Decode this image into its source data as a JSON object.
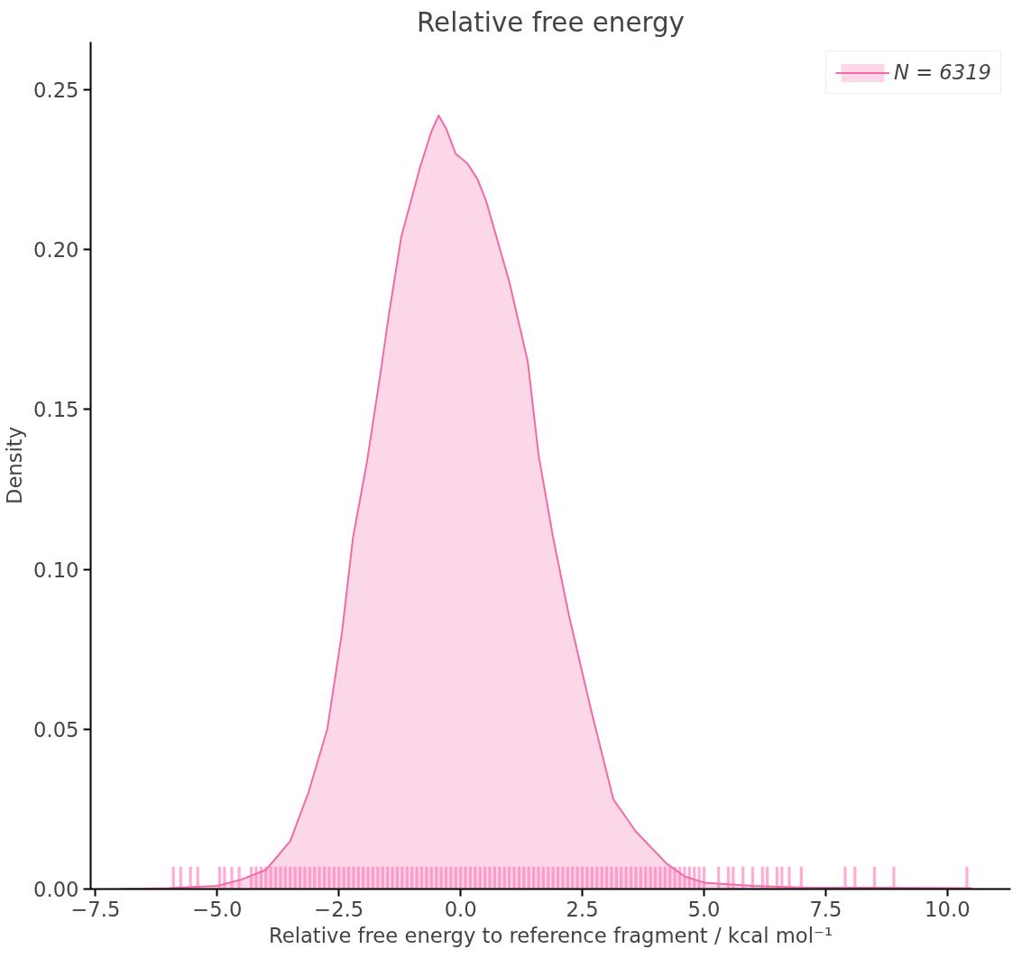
{
  "chart_data": {
    "type": "area",
    "title": "Relative free energy",
    "xlabel": "Relative free energy to reference fragment / kcal mol⁻¹",
    "ylabel": "Density",
    "xlim": [
      -7.6,
      11.3
    ],
    "ylim": [
      0,
      0.265
    ],
    "xticks": [
      {
        "value": -7.5,
        "label": "−7.5"
      },
      {
        "value": -5.0,
        "label": "−5.0"
      },
      {
        "value": -2.5,
        "label": "−2.5"
      },
      {
        "value": 0,
        "label": "0.0"
      },
      {
        "value": 2.5,
        "label": "2.5"
      },
      {
        "value": 5.0,
        "label": "5.0"
      },
      {
        "value": 7.5,
        "label": "7.5"
      },
      {
        "value": 10.0,
        "label": "10.0"
      }
    ],
    "yticks": [
      {
        "value": 0,
        "label": "0.00"
      },
      {
        "value": 0.05,
        "label": "0.05"
      },
      {
        "value": 0.1,
        "label": "0.10"
      },
      {
        "value": 0.15,
        "label": "0.15"
      },
      {
        "value": 0.2,
        "label": "0.20"
      },
      {
        "value": 0.25,
        "label": "0.25"
      }
    ],
    "grid": false,
    "legend": "top right",
    "series": [
      {
        "name": "N = 6319",
        "color": "#f06ba8",
        "x": [
          -7.0,
          -6.0,
          -5.0,
          -4.5,
          -4.0,
          -3.5,
          -3.13,
          -2.74,
          -2.44,
          -2.21,
          -1.92,
          -1.66,
          -1.47,
          -1.22,
          -0.83,
          -0.6,
          -0.45,
          -0.3,
          -0.1,
          0.14,
          0.35,
          0.53,
          1.0,
          1.38,
          1.6,
          1.9,
          2.22,
          2.68,
          3.14,
          3.6,
          4.23,
          4.6,
          5.0,
          6.0,
          7.0,
          8.5,
          10.5
        ],
        "values": [
          0.0,
          0.0003,
          0.001,
          0.003,
          0.006,
          0.015,
          0.03,
          0.05,
          0.08,
          0.11,
          0.134,
          0.16,
          0.18,
          0.204,
          0.226,
          0.237,
          0.242,
          0.238,
          0.23,
          0.227,
          0.222,
          0.215,
          0.19,
          0.165,
          0.136,
          0.11,
          0.086,
          0.056,
          0.028,
          0.018,
          0.008,
          0.004,
          0.002,
          0.001,
          0.0005,
          0.0004,
          0.0003
        ]
      },
      {
        "type": "bar",
        "color": "#ff69b4",
        "x": [
          -5.9,
          -5.75,
          -5.55,
          -5.4,
          -4.95,
          -4.85,
          -4.7,
          -4.55,
          -4.3,
          -4.2,
          -4.1,
          -4.0,
          -3.9,
          -3.8,
          -3.7,
          -3.6,
          -3.5,
          -3.4,
          -3.3,
          -3.2,
          -3.1,
          -3.0,
          -2.9,
          -2.8,
          -2.7,
          -2.6,
          -2.5,
          -2.4,
          -2.3,
          -2.2,
          -2.1,
          -2.0,
          -1.9,
          -1.8,
          -1.7,
          -1.6,
          -1.5,
          -1.4,
          -1.3,
          -1.2,
          -1.1,
          -1.0,
          -0.9,
          -0.8,
          -0.7,
          -0.6,
          -0.5,
          -0.4,
          -0.3,
          -0.2,
          -0.1,
          0.0,
          0.1,
          0.2,
          0.3,
          0.4,
          0.5,
          0.6,
          0.7,
          0.8,
          0.9,
          1.0,
          1.1,
          1.2,
          1.3,
          1.4,
          1.5,
          1.6,
          1.7,
          1.8,
          1.9,
          2.0,
          2.1,
          2.2,
          2.3,
          2.4,
          2.5,
          2.6,
          2.7,
          2.8,
          2.9,
          3.0,
          3.1,
          3.2,
          3.3,
          3.4,
          3.5,
          3.6,
          3.7,
          3.8,
          3.9,
          4.0,
          4.1,
          4.2,
          4.3,
          4.4,
          4.5,
          4.6,
          4.7,
          4.8,
          4.9,
          5.0,
          5.3,
          5.5,
          5.6,
          5.8,
          6.0,
          6.2,
          6.3,
          6.5,
          6.6,
          6.75,
          7.0,
          7.9,
          8.1,
          8.5,
          8.9,
          10.4
        ],
        "values": [
          0.007,
          0.007,
          0.007,
          0.007,
          0.007,
          0.007,
          0.007,
          0.007,
          0.007,
          0.007,
          0.007,
          0.007,
          0.007,
          0.007,
          0.007,
          0.007,
          0.007,
          0.007,
          0.007,
          0.007,
          0.007,
          0.007,
          0.007,
          0.007,
          0.007,
          0.007,
          0.007,
          0.007,
          0.007,
          0.007,
          0.007,
          0.007,
          0.007,
          0.007,
          0.007,
          0.007,
          0.007,
          0.007,
          0.007,
          0.007,
          0.007,
          0.007,
          0.007,
          0.007,
          0.007,
          0.007,
          0.007,
          0.007,
          0.007,
          0.007,
          0.007,
          0.007,
          0.007,
          0.007,
          0.007,
          0.007,
          0.007,
          0.007,
          0.007,
          0.007,
          0.007,
          0.007,
          0.007,
          0.007,
          0.007,
          0.007,
          0.007,
          0.007,
          0.007,
          0.007,
          0.007,
          0.007,
          0.007,
          0.007,
          0.007,
          0.007,
          0.007,
          0.007,
          0.007,
          0.007,
          0.007,
          0.007,
          0.007,
          0.007,
          0.007,
          0.007,
          0.007,
          0.007,
          0.007,
          0.007,
          0.007,
          0.007,
          0.007,
          0.007,
          0.007,
          0.007,
          0.007,
          0.007,
          0.007,
          0.007,
          0.007,
          0.007,
          0.007,
          0.007,
          0.007,
          0.007,
          0.007,
          0.007,
          0.007,
          0.007,
          0.007,
          0.007,
          0.007,
          0.007,
          0.007,
          0.007,
          0.007,
          0.007
        ]
      }
    ]
  }
}
